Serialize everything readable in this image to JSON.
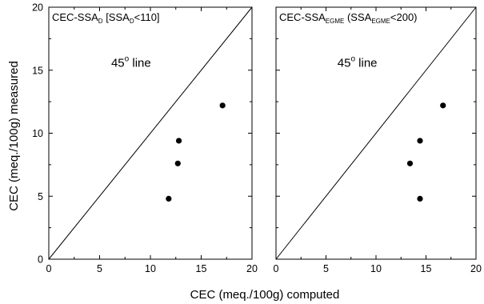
{
  "chart_data": [
    {
      "type": "scatter",
      "title_main": "CEC-SSA",
      "title_sub": "D",
      "title_suffix_1": " [SSA",
      "title_sub_2": "D",
      "title_suffix_2": "<110]",
      "line_label_main": "45",
      "line_label_sup": "o",
      "line_label_tail": " line",
      "xlim": [
        0,
        20
      ],
      "ylim": [
        0,
        20
      ],
      "x_ticks": [
        "0",
        "5",
        "10",
        "15",
        "20"
      ],
      "y_ticks": [
        "0",
        "5",
        "10",
        "15",
        "20"
      ],
      "points": [
        {
          "x": 17.1,
          "y": 12.2
        },
        {
          "x": 12.8,
          "y": 9.4
        },
        {
          "x": 12.7,
          "y": 7.6
        },
        {
          "x": 11.8,
          "y": 4.8
        }
      ]
    },
    {
      "type": "scatter",
      "title_main": "CEC-SSA",
      "title_sub": "EGME",
      "title_suffix_1": " (SSA",
      "title_sub_2": "EGME",
      "title_suffix_2": "<200)",
      "line_label_main": "45",
      "line_label_sup": "o",
      "line_label_tail": " line",
      "xlim": [
        0,
        20
      ],
      "ylim": [
        0,
        20
      ],
      "x_ticks": [
        "0",
        "5",
        "10",
        "15",
        "20"
      ],
      "y_ticks": [
        "0",
        "5",
        "10",
        "15",
        "20"
      ],
      "points": [
        {
          "x": 16.7,
          "y": 12.2
        },
        {
          "x": 14.4,
          "y": 9.4
        },
        {
          "x": 13.4,
          "y": 7.6
        },
        {
          "x": 14.4,
          "y": 4.8
        }
      ]
    }
  ],
  "axes": {
    "xlabel": "CEC (meq./100g) computed",
    "ylabel": "CEC (meq./100g) measured"
  }
}
